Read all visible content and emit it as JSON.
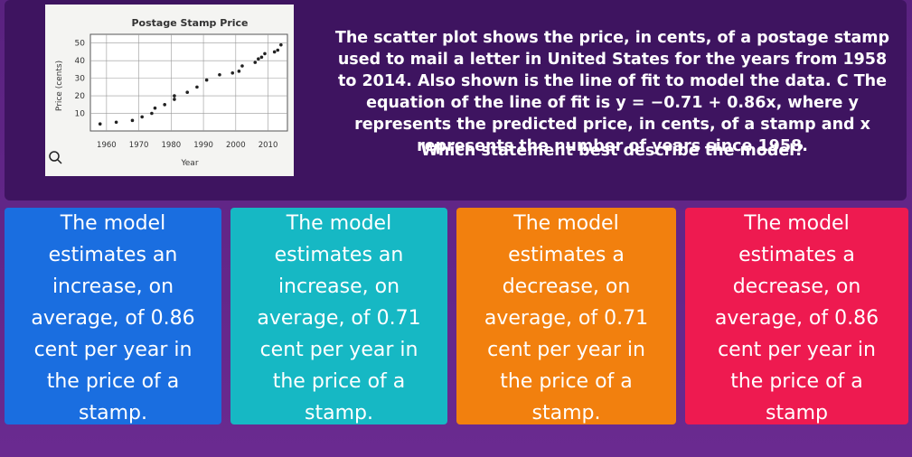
{
  "figure": {
    "title": "Postage Stamp Price",
    "x_label": "Year",
    "y_label": "Price (cents)",
    "xlim": [
      1955,
      2016
    ],
    "ylim": [
      0,
      55
    ],
    "xticks": [
      1960,
      1970,
      1980,
      1990,
      2000,
      2010
    ],
    "yticks": [
      10,
      20,
      30,
      40,
      50
    ],
    "x": [
      1958,
      1963,
      1968,
      1971,
      1974,
      1975,
      1978,
      1981,
      1981,
      1985,
      1988,
      1991,
      1995,
      1999,
      2001,
      2002,
      2006,
      2007,
      2008,
      2009,
      2012,
      2013,
      2014
    ],
    "y": [
      4,
      5,
      6,
      8,
      10,
      13,
      15,
      18,
      20,
      22,
      25,
      29,
      32,
      33,
      34,
      37,
      39,
      41,
      42,
      44,
      45,
      46,
      49
    ]
  },
  "question": {
    "text": "The scatter plot shows the price, in cents, of a postage stamp used to mail a letter in United States for the years from 1958 to 2014. Also shown is the line of fit to model the data. C The equation of the line of fit is y = −0.71 + 0.86x, where y represents the predicted price, in cents, of a stamp and x represents the number of years since 1958.",
    "prompt": "Which statement best describe the model?"
  },
  "options": [
    "The model estimates an increase, on average, of 0.86 cent per year in the price of a stamp.",
    "The model estimates an increase, on average, of 0.71 cent per year in the price of a stamp.",
    "The model estimates a decrease, on average, of 0.71 cent per year in the price of a stamp.",
    "The model estimates a decrease, on average, of 0.86 cent per year in the price of a stamp"
  ]
}
